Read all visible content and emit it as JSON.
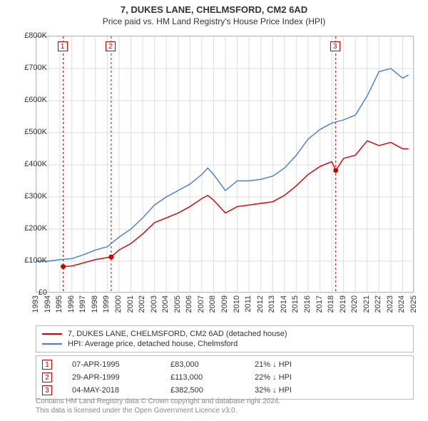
{
  "title": "7, DUKES LANE, CHELMSFORD, CM2 6AD",
  "subtitle": "Price paid vs. HM Land Registry's House Price Index (HPI)",
  "chart": {
    "type": "line",
    "background_color": "#ffffff",
    "plot_border_color": "#bbbbbb",
    "grid_color": "#dddddd",
    "title_fontsize": 13,
    "subtitle_fontsize": 12,
    "tick_fontsize": 11,
    "x": {
      "min": 1993,
      "max": 2025,
      "ticks": [
        1993,
        1994,
        1995,
        1996,
        1997,
        1998,
        1999,
        2000,
        2001,
        2002,
        2003,
        2004,
        2005,
        2006,
        2007,
        2008,
        2009,
        2010,
        2011,
        2012,
        2013,
        2014,
        2015,
        2016,
        2017,
        2018,
        2019,
        2020,
        2021,
        2022,
        2023,
        2024,
        2025
      ],
      "tick_labels": [
        "1993",
        "1994",
        "1995",
        "1996",
        "1997",
        "1998",
        "1999",
        "2000",
        "2001",
        "2002",
        "2003",
        "2004",
        "2005",
        "2006",
        "2007",
        "2008",
        "2009",
        "2010",
        "2011",
        "2012",
        "2013",
        "2014",
        "2015",
        "2016",
        "2017",
        "2018",
        "2019",
        "2020",
        "2021",
        "2022",
        "2023",
        "2024",
        "2025"
      ]
    },
    "y": {
      "min": 0,
      "max": 800000,
      "ticks": [
        0,
        100000,
        200000,
        300000,
        400000,
        500000,
        600000,
        700000,
        800000
      ],
      "tick_labels": [
        "£0",
        "£100K",
        "£200K",
        "£300K",
        "£400K",
        "£500K",
        "£600K",
        "£700K",
        "£800K"
      ]
    },
    "series": [
      {
        "key": "hpi",
        "label": "HPI: Average price, detached house, Chelmsford",
        "color": "#4a7bc8",
        "line_width": 1.4,
        "data": [
          [
            1993,
            100000
          ],
          [
            1994,
            100000
          ],
          [
            1995,
            105000
          ],
          [
            1996,
            108000
          ],
          [
            1997,
            120000
          ],
          [
            1998,
            135000
          ],
          [
            1999,
            145000
          ],
          [
            2000,
            175000
          ],
          [
            2001,
            200000
          ],
          [
            2002,
            235000
          ],
          [
            2003,
            275000
          ],
          [
            2004,
            300000
          ],
          [
            2005,
            320000
          ],
          [
            2006,
            340000
          ],
          [
            2007,
            370000
          ],
          [
            2007.5,
            390000
          ],
          [
            2008,
            370000
          ],
          [
            2009,
            320000
          ],
          [
            2010,
            350000
          ],
          [
            2011,
            350000
          ],
          [
            2012,
            355000
          ],
          [
            2013,
            365000
          ],
          [
            2014,
            390000
          ],
          [
            2015,
            430000
          ],
          [
            2016,
            480000
          ],
          [
            2017,
            510000
          ],
          [
            2018,
            530000
          ],
          [
            2019,
            540000
          ],
          [
            2020,
            555000
          ],
          [
            2021,
            615000
          ],
          [
            2022,
            690000
          ],
          [
            2023,
            700000
          ],
          [
            2024,
            670000
          ],
          [
            2024.5,
            680000
          ]
        ]
      },
      {
        "key": "price_paid",
        "label": "7, DUKES LANE, CHELMSFORD, CM2 6AD (detached house)",
        "color": "#cc0000",
        "line_width": 1.4,
        "data": [
          [
            1995.27,
            83000
          ],
          [
            1996,
            85000
          ],
          [
            1997,
            95000
          ],
          [
            1998,
            105000
          ],
          [
            1999.33,
            113000
          ],
          [
            2000,
            135000
          ],
          [
            2001,
            155000
          ],
          [
            2002,
            185000
          ],
          [
            2003,
            220000
          ],
          [
            2004,
            235000
          ],
          [
            2005,
            250000
          ],
          [
            2006,
            270000
          ],
          [
            2007,
            295000
          ],
          [
            2007.5,
            305000
          ],
          [
            2008,
            290000
          ],
          [
            2009,
            250000
          ],
          [
            2010,
            270000
          ],
          [
            2011,
            275000
          ],
          [
            2012,
            280000
          ],
          [
            2013,
            285000
          ],
          [
            2014,
            305000
          ],
          [
            2015,
            335000
          ],
          [
            2016,
            370000
          ],
          [
            2017,
            395000
          ],
          [
            2018,
            410000
          ],
          [
            2018.34,
            382500
          ],
          [
            2019,
            420000
          ],
          [
            2020,
            430000
          ],
          [
            2021,
            475000
          ],
          [
            2022,
            460000
          ],
          [
            2023,
            470000
          ],
          [
            2024,
            450000
          ],
          [
            2024.5,
            450000
          ]
        ]
      }
    ],
    "markers": [
      {
        "n": "1",
        "x": 1995.27,
        "y": 83000,
        "dash_color": "#cc0000"
      },
      {
        "n": "2",
        "x": 1999.33,
        "y": 113000,
        "dash_color": "#cc0000"
      },
      {
        "n": "3",
        "x": 2018.34,
        "y": 382500,
        "dash_color": "#cc0000"
      }
    ]
  },
  "legend": {
    "items": [
      {
        "color": "#cc0000",
        "label": "7, DUKES LANE, CHELMSFORD, CM2 6AD (detached house)"
      },
      {
        "color": "#4a7bc8",
        "label": "HPI: Average price, detached house, Chelmsford"
      }
    ]
  },
  "sales": [
    {
      "n": "1",
      "date": "07-APR-1995",
      "price": "£83,000",
      "hpi": "21% ↓ HPI"
    },
    {
      "n": "2",
      "date": "29-APR-1999",
      "price": "£113,000",
      "hpi": "22% ↓ HPI"
    },
    {
      "n": "3",
      "date": "04-MAY-2018",
      "price": "£382,500",
      "hpi": "32% ↓ HPI"
    }
  ],
  "footer": {
    "line1": "Contains HM Land Registry data © Crown copyright and database right 2024.",
    "line2": "This data is licensed under the Open Government Licence v3.0."
  }
}
